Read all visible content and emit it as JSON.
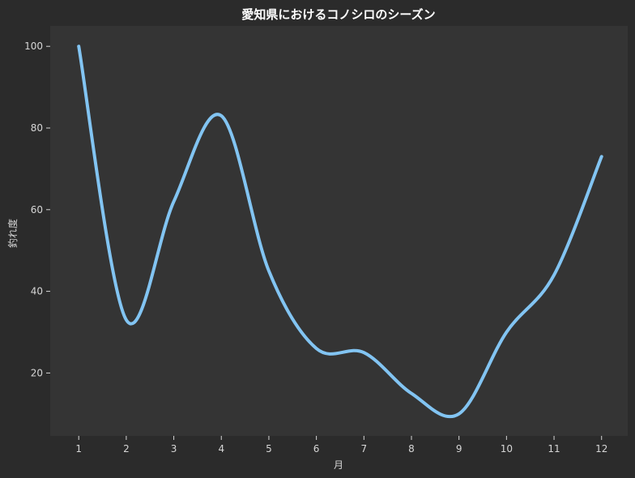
{
  "chart_data": {
    "type": "line",
    "title": "愛知県におけるコノシロのシーズン",
    "xlabel": "月",
    "ylabel": "釣れ度",
    "x": [
      1,
      2,
      3,
      4,
      5,
      6,
      7,
      8,
      9,
      10,
      11,
      12
    ],
    "series": [
      {
        "values": [
          100,
          33,
          62,
          83,
          45,
          26,
          25,
          15,
          10,
          30,
          44,
          73
        ],
        "color": "#82c4f2"
      }
    ],
    "xlim": [
      0.4,
      12.55
    ],
    "ylim": [
      4.6,
      105
    ],
    "xticks": [
      1,
      2,
      3,
      4,
      5,
      6,
      7,
      8,
      9,
      10,
      11,
      12
    ],
    "yticks": [
      20,
      40,
      60,
      80,
      100
    ],
    "grid": false,
    "legend": "none",
    "colors": {
      "background": "#2b2b2b",
      "plot_background": "#343434",
      "line": "#82c4f2",
      "text": "#d6d6d6",
      "title": "#ffffff"
    }
  }
}
